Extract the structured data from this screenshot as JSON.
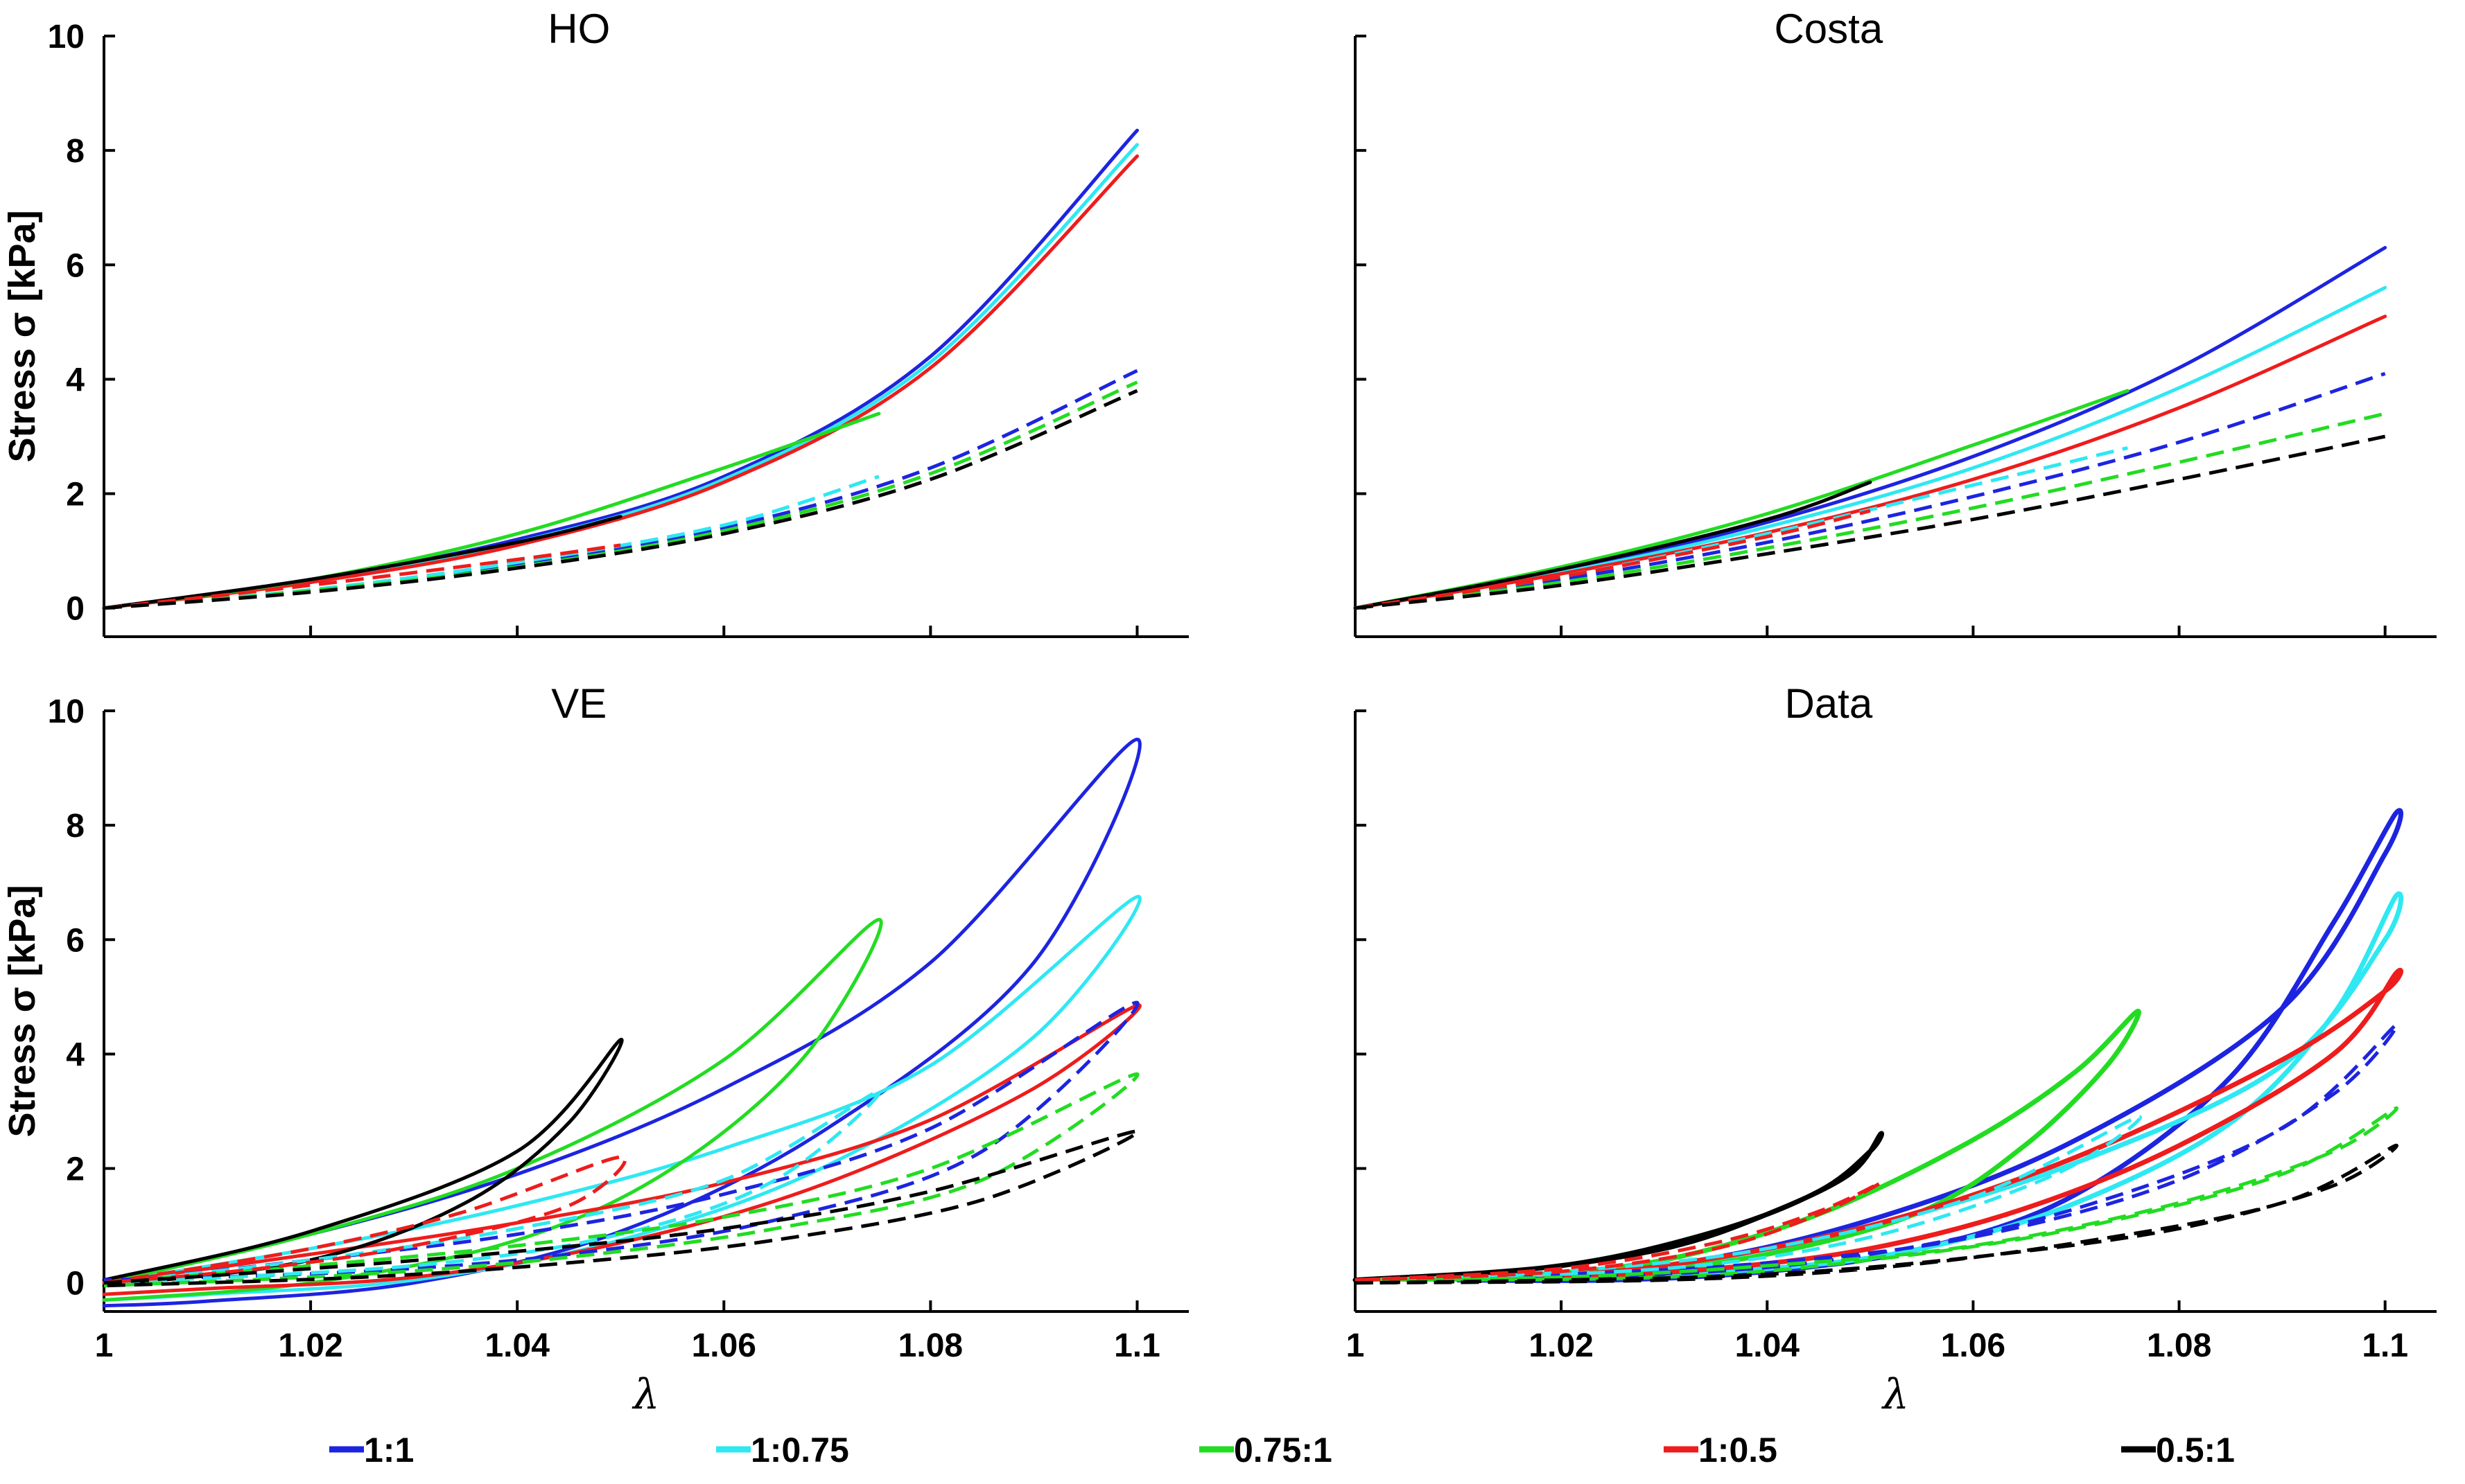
{
  "colors": {
    "1:1": "#1d24e0",
    "1:0.75": "#2ee8f2",
    "0.75:1": "#22dc22",
    "1:0.5": "#ee1c1c",
    "0.5:1": "#000000"
  },
  "legend": [
    {
      "key": "1:1",
      "label": "1:1"
    },
    {
      "key": "1:0.75",
      "label": "1:0.75"
    },
    {
      "key": "0.75:1",
      "label": "0.75:1"
    },
    {
      "key": "1:0.5",
      "label": "1:0.5"
    },
    {
      "key": "0.5:1",
      "label": "0.5:1"
    }
  ],
  "chart_data": [
    {
      "type": "line",
      "title": "HO",
      "xlabel": "",
      "ylabel": "Stress σ [kPa]",
      "xlim": [
        1,
        1.105
      ],
      "ylim": [
        -0.5,
        10
      ],
      "xticks": [
        1,
        1.02,
        1.04,
        1.06,
        1.08,
        1.1
      ],
      "xticklabels": [
        "",
        "",
        "",
        "",
        "",
        ""
      ],
      "yticks": [
        0,
        2,
        4,
        6,
        8,
        10
      ],
      "yticklabels": [
        "0",
        "2",
        "4",
        "6",
        "8",
        "10"
      ],
      "series": [
        {
          "key": "1:1",
          "dash": false,
          "x": [
            1,
            1.02,
            1.04,
            1.06,
            1.08,
            1.1
          ],
          "y": [
            0,
            0.5,
            1.2,
            2.3,
            4.4,
            8.35
          ]
        },
        {
          "key": "1:0.75",
          "dash": false,
          "x": [
            1,
            1.02,
            1.04,
            1.06,
            1.08,
            1.1
          ],
          "y": [
            0,
            0.48,
            1.15,
            2.25,
            4.3,
            8.1
          ]
        },
        {
          "key": "1:0.5",
          "dash": false,
          "x": [
            1,
            1.02,
            1.04,
            1.06,
            1.08,
            1.1
          ],
          "y": [
            0,
            0.45,
            1.1,
            2.2,
            4.2,
            7.9
          ]
        },
        {
          "key": "0.75:1",
          "dash": false,
          "x": [
            1,
            1.02,
            1.04,
            1.06,
            1.075
          ],
          "y": [
            0,
            0.5,
            1.3,
            2.45,
            3.4
          ]
        },
        {
          "key": "0.5:1",
          "dash": false,
          "x": [
            1,
            1.02,
            1.04,
            1.05
          ],
          "y": [
            0,
            0.5,
            1.15,
            1.6
          ]
        },
        {
          "key": "1:1",
          "dash": true,
          "x": [
            1,
            1.02,
            1.04,
            1.06,
            1.08,
            1.1
          ],
          "y": [
            0,
            0.3,
            0.75,
            1.4,
            2.45,
            4.15
          ]
        },
        {
          "key": "1:0.75",
          "dash": true,
          "x": [
            1,
            1.02,
            1.04,
            1.06,
            1.075
          ],
          "y": [
            0,
            0.32,
            0.8,
            1.45,
            2.3
          ]
        },
        {
          "key": "0.75:1",
          "dash": true,
          "x": [
            1,
            1.02,
            1.04,
            1.06,
            1.08,
            1.1
          ],
          "y": [
            0,
            0.3,
            0.72,
            1.35,
            2.35,
            3.95
          ]
        },
        {
          "key": "1:0.5",
          "dash": true,
          "x": [
            1,
            1.02,
            1.04,
            1.05
          ],
          "y": [
            0,
            0.4,
            0.85,
            1.1
          ]
        },
        {
          "key": "0.5:1",
          "dash": true,
          "x": [
            1,
            1.02,
            1.04,
            1.06,
            1.08,
            1.1
          ],
          "y": [
            0,
            0.28,
            0.7,
            1.3,
            2.25,
            3.8
          ]
        }
      ]
    },
    {
      "type": "line",
      "title": "Costa",
      "xlabel": "",
      "ylabel": "",
      "xlim": [
        1,
        1.105
      ],
      "ylim": [
        -0.5,
        10
      ],
      "xticks": [
        1,
        1.02,
        1.04,
        1.06,
        1.08,
        1.1
      ],
      "xticklabels": [
        "",
        "",
        "",
        "",
        "",
        ""
      ],
      "yticks": [
        0,
        2,
        4,
        6,
        8,
        10
      ],
      "yticklabels": [
        "",
        "",
        "",
        "",
        "",
        ""
      ],
      "series": [
        {
          "key": "1:1",
          "dash": false,
          "x": [
            1,
            1.02,
            1.04,
            1.06,
            1.08,
            1.1
          ],
          "y": [
            0,
            0.65,
            1.5,
            2.65,
            4.2,
            6.3
          ]
        },
        {
          "key": "1:0.75",
          "dash": false,
          "x": [
            1,
            1.02,
            1.04,
            1.06,
            1.08,
            1.1
          ],
          "y": [
            0,
            0.62,
            1.42,
            2.45,
            3.85,
            5.6
          ]
        },
        {
          "key": "1:0.5",
          "dash": false,
          "x": [
            1,
            1.02,
            1.04,
            1.06,
            1.08,
            1.1
          ],
          "y": [
            0,
            0.6,
            1.32,
            2.25,
            3.5,
            5.1
          ]
        },
        {
          "key": "0.75:1",
          "dash": false,
          "x": [
            1,
            1.02,
            1.04,
            1.06,
            1.075
          ],
          "y": [
            0,
            0.72,
            1.65,
            2.85,
            3.8
          ]
        },
        {
          "key": "0.5:1",
          "dash": false,
          "x": [
            1,
            1.02,
            1.04,
            1.05
          ],
          "y": [
            0,
            0.68,
            1.55,
            2.2
          ]
        },
        {
          "key": "1:1",
          "dash": true,
          "x": [
            1,
            1.02,
            1.04,
            1.06,
            1.08,
            1.1
          ],
          "y": [
            0,
            0.5,
            1.15,
            1.95,
            2.9,
            4.1
          ]
        },
        {
          "key": "1:0.75",
          "dash": true,
          "x": [
            1,
            1.02,
            1.04,
            1.06,
            1.075
          ],
          "y": [
            0,
            0.55,
            1.3,
            2.15,
            2.8
          ]
        },
        {
          "key": "0.75:1",
          "dash": true,
          "x": [
            1,
            1.02,
            1.04,
            1.06,
            1.08,
            1.1
          ],
          "y": [
            0,
            0.45,
            1.05,
            1.75,
            2.55,
            3.4
          ]
        },
        {
          "key": "1:0.5",
          "dash": true,
          "x": [
            1,
            1.02,
            1.04,
            1.05
          ],
          "y": [
            0,
            0.55,
            1.25,
            1.7
          ]
        },
        {
          "key": "0.5:1",
          "dash": true,
          "x": [
            1,
            1.02,
            1.04,
            1.06,
            1.08,
            1.1
          ],
          "y": [
            0,
            0.4,
            0.95,
            1.55,
            2.25,
            3.0
          ]
        }
      ]
    },
    {
      "type": "line",
      "title": "VE",
      "xlabel": "λ",
      "ylabel": "Stress σ [kPa]",
      "xlim": [
        1,
        1.105
      ],
      "ylim": [
        -0.5,
        10
      ],
      "xticks": [
        1,
        1.02,
        1.04,
        1.06,
        1.08,
        1.1
      ],
      "xticklabels": [
        "1",
        "1.02",
        "1.04",
        "1.06",
        "1.08",
        "1.1"
      ],
      "yticks": [
        0,
        2,
        4,
        6,
        8,
        10
      ],
      "yticklabels": [
        "0",
        "2",
        "4",
        "6",
        "8",
        "10"
      ],
      "series": [
        {
          "key": "1:1",
          "dash": false,
          "x": [
            1,
            1.02,
            1.04,
            1.06,
            1.08,
            1.1,
            1.09,
            1.07,
            1.05,
            1.03,
            1.01,
            1
          ],
          "y": [
            0.05,
            0.85,
            1.9,
            3.4,
            5.6,
            9.5,
            5.6,
            2.7,
            0.9,
            0.0,
            -0.32,
            -0.4
          ]
        },
        {
          "key": "1:0.75",
          "dash": false,
          "x": [
            1,
            1.02,
            1.04,
            1.06,
            1.08,
            1.1,
            1.09,
            1.07,
            1.05,
            1.03,
            1.01,
            1
          ],
          "y": [
            0.0,
            0.6,
            1.35,
            2.35,
            3.8,
            6.75,
            4.3,
            2.05,
            0.75,
            0.05,
            -0.2,
            -0.3
          ]
        },
        {
          "key": "0.75:1",
          "dash": false,
          "x": [
            1,
            1.02,
            1.04,
            1.06,
            1.075,
            1.068,
            1.055,
            1.04,
            1.02,
            1
          ],
          "y": [
            0.0,
            0.85,
            2.0,
            3.9,
            6.35,
            4.0,
            2.0,
            0.75,
            0.0,
            -0.3
          ]
        },
        {
          "key": "1:0.5",
          "dash": false,
          "x": [
            1,
            1.02,
            1.04,
            1.06,
            1.08,
            1.1,
            1.09,
            1.07,
            1.05,
            1.03,
            1.01,
            1
          ],
          "y": [
            0.0,
            0.5,
            1.05,
            1.75,
            2.85,
            4.85,
            3.4,
            1.75,
            0.7,
            0.1,
            -0.1,
            -0.2
          ]
        },
        {
          "key": "0.5:1",
          "dash": false,
          "x": [
            1,
            1.02,
            1.04,
            1.05,
            1.045,
            1.035,
            1.02,
            1
          ],
          "y": [
            0.05,
            0.9,
            2.3,
            4.25,
            2.8,
            1.4,
            0.4,
            -0.05
          ]
        },
        {
          "key": "1:1",
          "dash": true,
          "x": [
            1,
            1.02,
            1.04,
            1.06,
            1.08,
            1.1,
            1.085,
            1.065,
            1.045,
            1.025,
            1
          ],
          "y": [
            0.0,
            0.4,
            0.85,
            1.55,
            2.7,
            4.9,
            2.3,
            1.1,
            0.5,
            0.2,
            0.05
          ]
        },
        {
          "key": "1:0.75",
          "dash": true,
          "x": [
            1,
            1.02,
            1.04,
            1.06,
            1.075,
            1.065,
            1.05,
            1.03,
            1
          ],
          "y": [
            0.0,
            0.4,
            0.95,
            1.8,
            3.35,
            1.8,
            0.85,
            0.3,
            0.0
          ]
        },
        {
          "key": "0.75:1",
          "dash": true,
          "x": [
            1,
            1.02,
            1.04,
            1.06,
            1.08,
            1.1,
            1.085,
            1.065,
            1.045,
            1.025,
            1
          ],
          "y": [
            0.0,
            0.3,
            0.65,
            1.15,
            2.0,
            3.65,
            1.8,
            0.95,
            0.45,
            0.15,
            -0.05
          ]
        },
        {
          "key": "1:0.5",
          "dash": true,
          "x": [
            1,
            1.02,
            1.035,
            1.05,
            1.045,
            1.03,
            1.015,
            1
          ],
          "y": [
            0.0,
            0.6,
            1.25,
            2.2,
            1.35,
            0.65,
            0.25,
            0.0
          ]
        },
        {
          "key": "0.5:1",
          "dash": true,
          "x": [
            1,
            1.02,
            1.04,
            1.06,
            1.08,
            1.1,
            1.085,
            1.065,
            1.045,
            1.025,
            1
          ],
          "y": [
            0.0,
            0.25,
            0.55,
            0.95,
            1.6,
            2.65,
            1.45,
            0.75,
            0.35,
            0.1,
            -0.05
          ]
        }
      ]
    },
    {
      "type": "line",
      "title": "Data",
      "xlabel": "λ",
      "ylabel": "",
      "xlim": [
        1,
        1.105
      ],
      "ylim": [
        -0.5,
        10
      ],
      "xticks": [
        1,
        1.02,
        1.04,
        1.06,
        1.08,
        1.1
      ],
      "xticklabels": [
        "1",
        "1.02",
        "1.04",
        "1.06",
        "1.08",
        "1.1"
      ],
      "yticks": [
        0,
        2,
        4,
        6,
        8,
        10
      ],
      "yticklabels": [
        "",
        "",
        "",
        "",
        "",
        ""
      ],
      "series": [
        {
          "key": "1:1",
          "dash": false,
          "thick": true,
          "x": [
            1.01,
            1.03,
            1.05,
            1.07,
            1.09,
            1.1,
            1.101,
            1.095,
            1.085,
            1.07,
            1.055,
            1.04,
            1.025,
            1.01
          ],
          "y": [
            0.1,
            0.3,
            1.1,
            2.5,
            4.8,
            7.5,
            8.2,
            6.3,
            3.6,
            1.55,
            0.6,
            0.2,
            0.05,
            0.05
          ]
        },
        {
          "key": "1:0.75",
          "dash": false,
          "thick": true,
          "x": [
            1.008,
            1.03,
            1.05,
            1.07,
            1.09,
            1.1,
            1.101,
            1.095,
            1.085,
            1.07,
            1.055,
            1.04,
            1.02,
            1.008
          ],
          "y": [
            0.1,
            0.3,
            1.0,
            2.1,
            3.8,
            6.0,
            6.75,
            4.7,
            2.8,
            1.4,
            0.6,
            0.25,
            0.1,
            0.1
          ]
        },
        {
          "key": "0.75:1",
          "dash": false,
          "thick": true,
          "x": [
            1.015,
            1.03,
            1.045,
            1.06,
            1.07,
            1.076,
            1.073,
            1.065,
            1.055,
            1.04,
            1.025,
            1.015
          ],
          "y": [
            0.1,
            0.4,
            1.2,
            2.5,
            3.7,
            4.75,
            3.8,
            2.4,
            1.25,
            0.5,
            0.15,
            0.1
          ]
        },
        {
          "key": "1:0.5",
          "dash": false,
          "thick": true,
          "x": [
            1.015,
            1.03,
            1.05,
            1.07,
            1.09,
            1.1,
            1.101,
            1.095,
            1.08,
            1.065,
            1.05,
            1.035,
            1.02,
            1.015
          ],
          "y": [
            0.1,
            0.3,
            1.0,
            2.2,
            3.9,
            5.1,
            5.4,
            4.0,
            2.4,
            1.3,
            0.6,
            0.25,
            0.1,
            0.1
          ]
        },
        {
          "key": "0.5:1",
          "dash": false,
          "thick": true,
          "x": [
            1.0,
            1.02,
            1.035,
            1.045,
            1.05,
            1.051,
            1.048,
            1.04,
            1.03,
            1.015,
            1.0
          ],
          "y": [
            0.05,
            0.3,
            0.9,
            1.6,
            2.3,
            2.6,
            1.9,
            1.2,
            0.6,
            0.2,
            0.05
          ]
        },
        {
          "key": "1:1",
          "dash": true,
          "x": [
            1.0,
            1.02,
            1.04,
            1.06,
            1.08,
            1.095,
            1.101,
            1.09,
            1.07,
            1.05,
            1.03,
            1.0
          ],
          "y": [
            0.05,
            0.15,
            0.35,
            0.8,
            1.8,
            3.3,
            4.5,
            2.7,
            1.3,
            0.5,
            0.15,
            0.05
          ]
        },
        {
          "key": "1:0.75",
          "dash": true,
          "x": [
            1.0,
            1.02,
            1.04,
            1.06,
            1.076,
            1.068,
            1.05,
            1.03,
            1.0
          ],
          "y": [
            0.05,
            0.2,
            0.6,
            1.5,
            2.9,
            1.9,
            0.8,
            0.25,
            0.05
          ]
        },
        {
          "key": "0.75:1",
          "dash": true,
          "x": [
            1.0,
            1.02,
            1.04,
            1.06,
            1.08,
            1.095,
            1.101,
            1.09,
            1.07,
            1.05,
            1.03,
            1.0
          ],
          "y": [
            0.05,
            0.1,
            0.3,
            0.65,
            1.4,
            2.3,
            3.05,
            1.9,
            0.95,
            0.4,
            0.1,
            0.05
          ]
        },
        {
          "key": "1:0.5",
          "dash": true,
          "x": [
            1.0,
            1.02,
            1.035,
            1.045,
            1.051,
            1.045,
            1.035,
            1.02,
            1.0
          ],
          "y": [
            0.05,
            0.25,
            0.7,
            1.25,
            1.75,
            1.2,
            0.6,
            0.2,
            0.05
          ]
        },
        {
          "key": "0.5:1",
          "dash": true,
          "x": [
            1.0,
            1.02,
            1.04,
            1.06,
            1.08,
            1.095,
            1.101,
            1.09,
            1.07,
            1.05,
            1.03,
            1.0
          ],
          "y": [
            0.0,
            0.05,
            0.15,
            0.45,
            0.95,
            1.7,
            2.4,
            1.4,
            0.7,
            0.25,
            0.05,
            0.0
          ]
        }
      ]
    }
  ]
}
